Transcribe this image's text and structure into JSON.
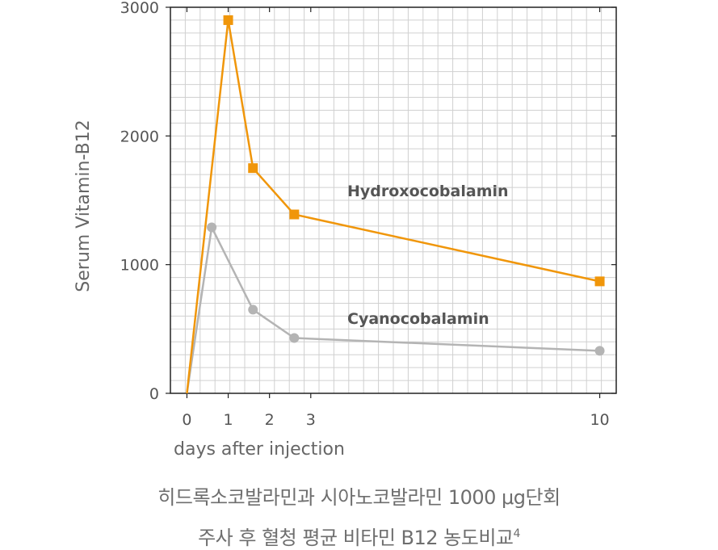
{
  "chart_data": {
    "type": "line",
    "title": "",
    "xlabel": "days after injection",
    "ylabel": "Serum Vitamin-B12",
    "xlim": [
      -0.4,
      10.4
    ],
    "ylim": [
      0,
      3000
    ],
    "x_ticks": [
      0,
      1,
      2,
      3,
      10
    ],
    "y_ticks": [
      0,
      1000,
      2000,
      3000
    ],
    "grid": true,
    "series": [
      {
        "name": "Hydroxocobalamin",
        "color": "#f0960a",
        "marker": "square",
        "x": [
          0,
          1,
          1.6,
          2.6,
          10
        ],
        "y": [
          0,
          2900,
          1750,
          1390,
          870
        ]
      },
      {
        "name": "Cyanocobalamin",
        "color": "#b4b4b4",
        "marker": "circle",
        "x": [
          0,
          0.6,
          1.6,
          2.6,
          10
        ],
        "y": [
          0,
          1290,
          650,
          430,
          330
        ]
      }
    ]
  },
  "caption": {
    "line1": "히드록소코발라민과 시아노코발라민 1000 μg단회",
    "line2": "주사 후 혈청 평균 비타민 B12 농도비교",
    "note": "4"
  }
}
